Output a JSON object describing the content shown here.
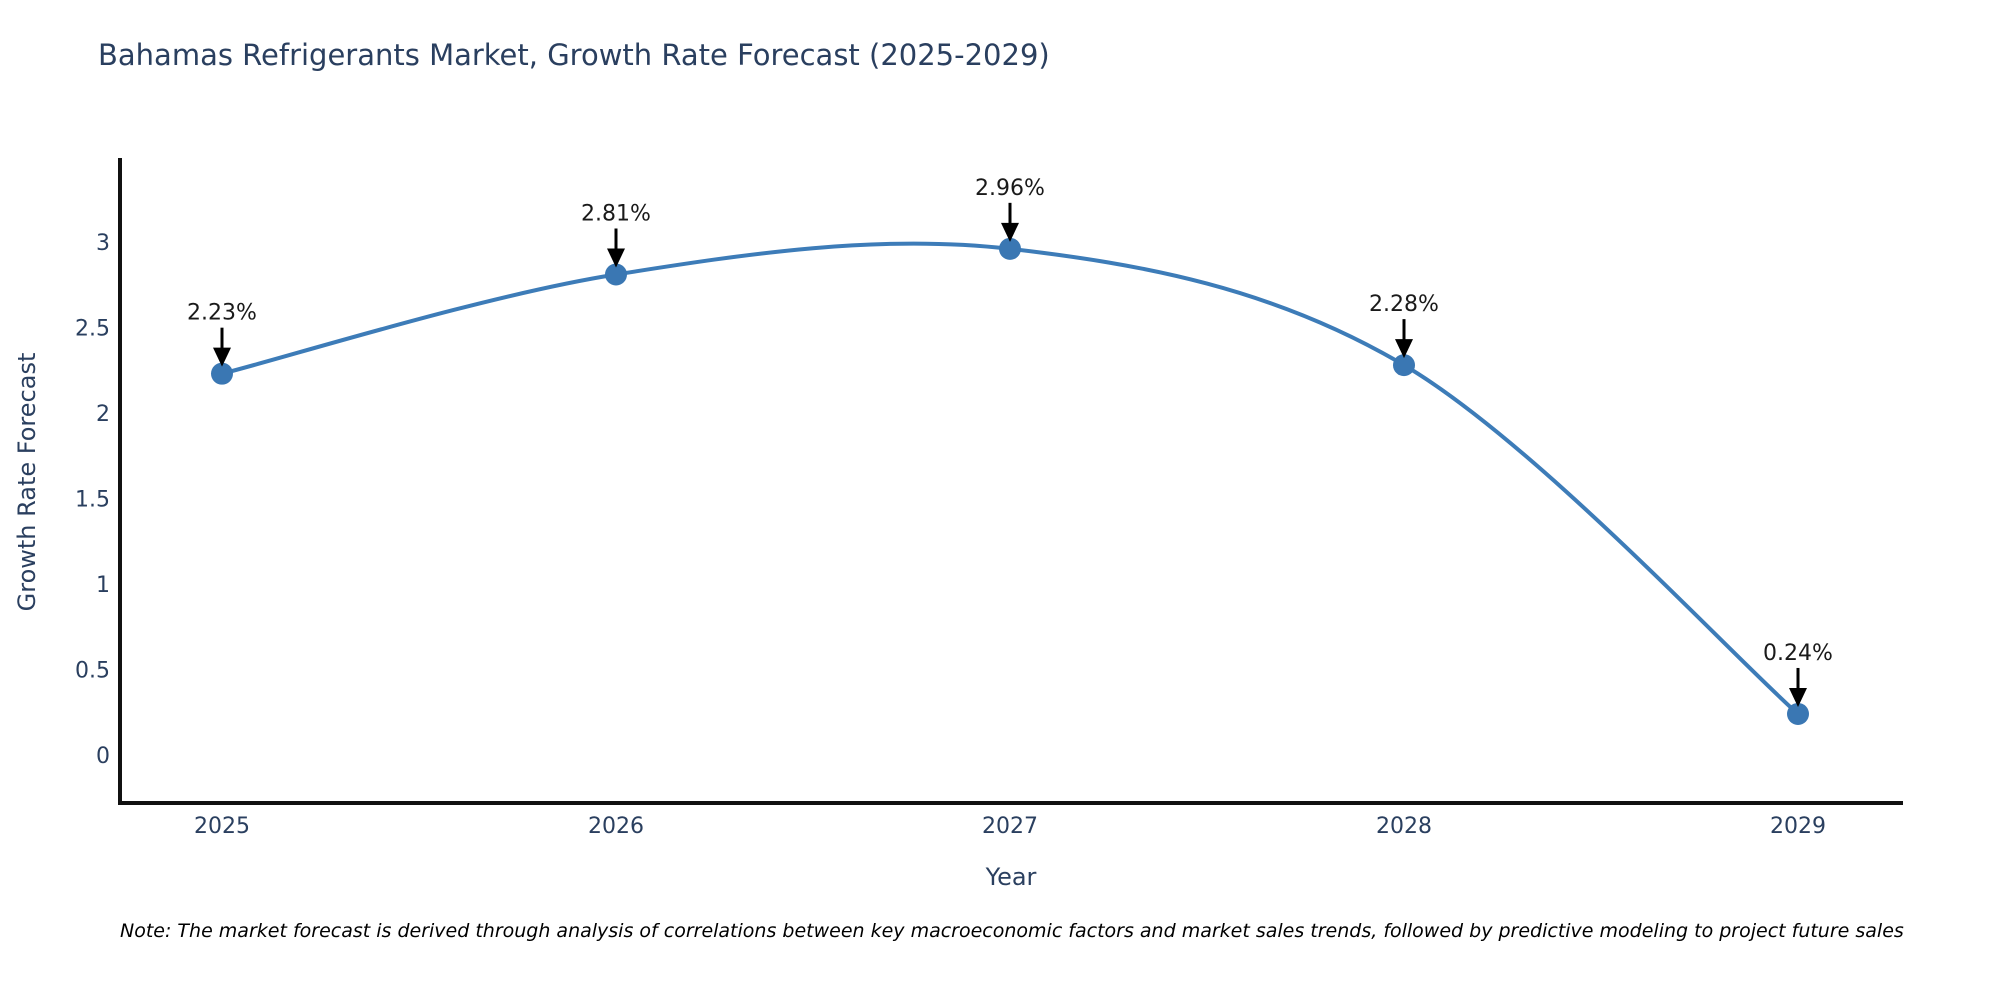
{
  "chart_data": {
    "type": "line",
    "title": "Bahamas Refrigerants Market, Growth Rate Forecast (2025-2029)",
    "xlabel": "Year",
    "ylabel": "Growth Rate Forecast",
    "categories": [
      "2025",
      "2026",
      "2027",
      "2028",
      "2029"
    ],
    "series": [
      {
        "name": "Growth Rate Forecast",
        "values": [
          2.23,
          2.81,
          2.96,
          2.28,
          0.24
        ],
        "point_labels": [
          "2.23%",
          "2.81%",
          "2.96%",
          "2.28%",
          "0.24%"
        ]
      }
    ],
    "yticks": [
      0,
      0.5,
      1,
      1.5,
      2,
      2.5,
      3
    ],
    "ylim": [
      -0.28,
      3.55
    ],
    "line_shape": "spline",
    "markers": true,
    "grid": false,
    "legend_position": "none",
    "annotations_style": "black-down-arrows",
    "note": "Note: The market forecast is derived through analysis of correlations between key macroeconomic factors and market sales trends, followed by predictive modeling to project future sales",
    "colors": {
      "line": "#3d7cb8",
      "marker": "#3a77b3",
      "axis_line": "#111111",
      "tick_text": "#2a3f5f",
      "title_text": "#2a3f5f",
      "annotation_text": "#1a1a1a",
      "annotation_arrow": "#000000",
      "background": "#ffffff"
    }
  }
}
